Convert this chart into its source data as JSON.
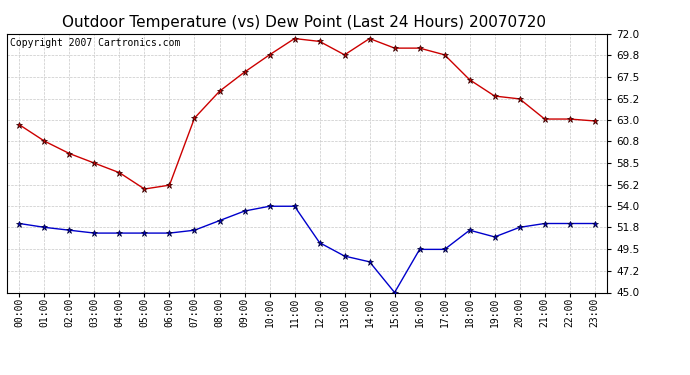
{
  "title": "Outdoor Temperature (vs) Dew Point (Last 24 Hours) 20070720",
  "copyright_text": "Copyright 2007 Cartronics.com",
  "x_labels": [
    "00:00",
    "01:00",
    "02:00",
    "03:00",
    "04:00",
    "05:00",
    "06:00",
    "07:00",
    "08:00",
    "09:00",
    "10:00",
    "11:00",
    "12:00",
    "13:00",
    "14:00",
    "15:00",
    "16:00",
    "17:00",
    "18:00",
    "19:00",
    "20:00",
    "21:00",
    "22:00",
    "23:00"
  ],
  "temp_data": [
    62.5,
    60.8,
    59.5,
    58.5,
    57.5,
    55.8,
    56.2,
    63.2,
    66.0,
    68.0,
    69.8,
    71.5,
    71.2,
    69.8,
    71.5,
    70.5,
    70.5,
    69.8,
    67.2,
    65.5,
    65.2,
    63.1,
    63.1,
    62.9
  ],
  "dew_data": [
    52.2,
    51.8,
    51.5,
    51.2,
    51.2,
    51.2,
    51.2,
    51.5,
    52.5,
    53.5,
    54.0,
    54.0,
    50.2,
    48.8,
    48.2,
    45.0,
    49.5,
    49.5,
    51.5,
    50.8,
    51.8,
    52.2,
    52.2,
    52.2
  ],
  "temp_color": "#cc0000",
  "dew_color": "#0000cc",
  "bg_color": "#ffffff",
  "grid_color": "#c8c8c8",
  "ylim": [
    45.0,
    72.0
  ],
  "yticks": [
    45.0,
    47.2,
    49.5,
    51.8,
    54.0,
    56.2,
    58.5,
    60.8,
    63.0,
    65.2,
    67.5,
    69.8,
    72.0
  ],
  "title_fontsize": 11,
  "copyright_fontsize": 7,
  "tick_fontsize": 7.5,
  "xtick_fontsize": 7
}
